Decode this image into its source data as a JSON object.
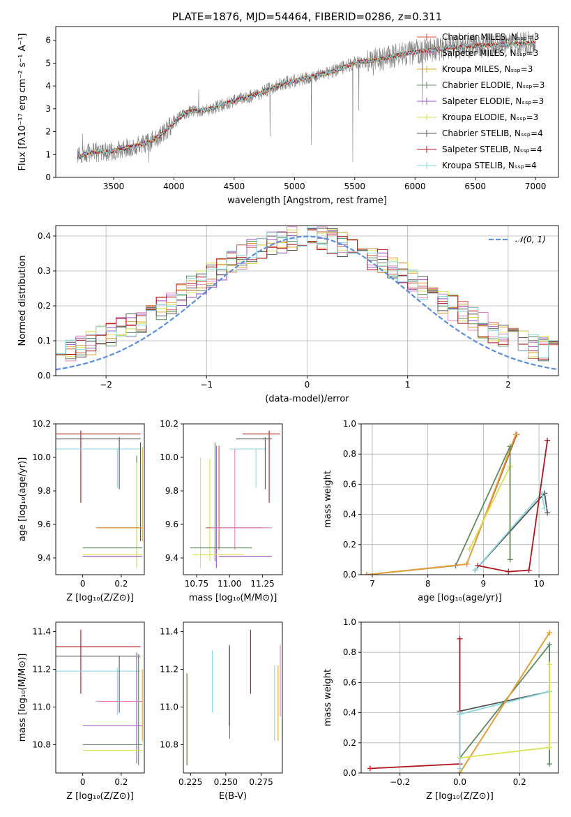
{
  "palette": {
    "chabrier_miles": "#d0553b",
    "salpeter_miles": "#e383c0",
    "kroupa_miles": "#e3a335",
    "chabrier_elodie": "#5f8a5f",
    "salpeter_elodie": "#9b4fc4",
    "kroupa_elodie": "#d8e24f",
    "chabrier_stelib": "#555555",
    "salpeter_stelib": "#b0161c",
    "kroupa_stelib": "#89d8e0",
    "normal": "#5b8fdd",
    "data": "#808080"
  },
  "chart_data": [
    {
      "id": "spectrum",
      "type": "line",
      "title": "PLATE=1876, MJD=54464, FIBERID=0286, z=0.311",
      "xlabel": "wavelength [Angstrom, rest frame]",
      "ylabel": "Flux [fλ10⁻¹⁷ erg cm⁻² s⁻¹ A⁻¹]",
      "xlim": [
        3020,
        7190
      ],
      "ylim": [
        0,
        6.6
      ],
      "xticks": [
        3500,
        4000,
        4500,
        5000,
        5500,
        6000,
        6500,
        7000
      ],
      "yticks": [
        0,
        1,
        2,
        3,
        4,
        5,
        6
      ],
      "grid": false,
      "legend_position": "top-right",
      "x_range": [
        3200,
        7000
      ],
      "continuum": {
        "x": [
          3200,
          3300,
          3500,
          3700,
          3800,
          3900,
          4000,
          4100,
          4300,
          4500,
          4700,
          4900,
          5100,
          5300,
          5500,
          5700,
          5900,
          6100,
          6300,
          6500,
          6700,
          6900,
          7000
        ],
        "y": [
          0.85,
          1.1,
          1.15,
          1.4,
          1.55,
          1.9,
          2.4,
          2.85,
          3.0,
          3.35,
          3.65,
          4.1,
          4.35,
          4.6,
          5.0,
          5.15,
          5.4,
          5.55,
          5.7,
          5.75,
          5.8,
          5.85,
          5.9
        ]
      },
      "legend": [
        "Chabrier MILES, Nₛₛₚ=3",
        "Salpeter MILES, Nₛₛₚ=3",
        "Kroupa MILES, Nₛₛₚ=3",
        "Chabrier ELODIE, Nₛₛₚ=3",
        "Salpeter ELODIE, Nₛₛₚ=3",
        "Kroupa ELODIE, Nₛₛₚ=3",
        "Chabrier STELIB, Nₛₛₚ=4",
        "Salpeter STELIB, Nₛₛₚ=4",
        "Kroupa STELIB, Nₛₛₚ=4"
      ]
    },
    {
      "id": "residuals",
      "type": "line",
      "xlabel": "(data-model)/error",
      "ylabel": "Normed distribution",
      "xlim": [
        -2.5,
        2.5
      ],
      "ylim": [
        0,
        0.43
      ],
      "xticks": [
        -2,
        -1,
        0,
        1,
        2
      ],
      "yticks": [
        0.0,
        0.1,
        0.2,
        0.3,
        0.4
      ],
      "grid": true,
      "legend_position": "top-right",
      "legend": [
        "𝒩(0, 1)"
      ],
      "bins": 50,
      "reference_curve": {
        "type": "normal",
        "mean": 0,
        "sigma": 1
      }
    },
    {
      "id": "age_vs_Z",
      "type": "scatter",
      "xlabel": "Z [log₁₀(Z/Z⊙)]",
      "ylabel": "age  [log₁₀(age/yr)]",
      "xlim": [
        -0.14,
        0.32
      ],
      "ylim": [
        9.3,
        10.2
      ],
      "xticks": [
        0.0,
        0.2
      ],
      "yticks": [
        9.4,
        9.6,
        9.8,
        10.0,
        10.2
      ],
      "grid": false,
      "segments": [
        {
          "c": "salpeter_stelib",
          "x": [
            -0.14,
            0.3
          ],
          "y": [
            10.14,
            10.14
          ]
        },
        {
          "c": "salpeter_stelib",
          "x": [
            -0.01,
            -0.01
          ],
          "y": [
            9.73,
            10.16
          ]
        },
        {
          "c": "chabrier_stelib",
          "x": [
            -0.14,
            0.3
          ],
          "y": [
            10.11,
            10.11
          ]
        },
        {
          "c": "kroupa_stelib",
          "x": [
            -0.14,
            0.3
          ],
          "y": [
            10.05,
            10.05
          ]
        },
        {
          "c": "chabrier_stelib",
          "x": [
            0.19,
            0.19
          ],
          "y": [
            9.81,
            10.12
          ]
        },
        {
          "c": "kroupa_stelib",
          "x": [
            0.18,
            0.18
          ],
          "y": [
            9.82,
            10.05
          ]
        },
        {
          "c": "chabrier_elodie",
          "x": [
            0.28,
            0.28
          ],
          "y": [
            9.34,
            10.01
          ]
        },
        {
          "c": "kroupa_elodie",
          "x": [
            0.28,
            0.28
          ],
          "y": [
            9.34,
            9.97
          ]
        },
        {
          "c": "chabrier_stelib",
          "x": [
            0.3,
            0.3
          ],
          "y": [
            9.5,
            10.09
          ]
        },
        {
          "c": "kroupa_miles",
          "x": [
            0.31,
            0.31
          ],
          "y": [
            9.5,
            10.06
          ]
        },
        {
          "c": "chabrier_miles",
          "x": [
            0.07,
            0.31
          ],
          "y": [
            9.58,
            9.58
          ]
        },
        {
          "c": "kroupa_miles",
          "x": [
            0.07,
            0.31
          ],
          "y": [
            9.58,
            9.58
          ]
        },
        {
          "c": "chabrier_elodie",
          "x": [
            0.0,
            0.31
          ],
          "y": [
            9.46,
            9.46
          ]
        },
        {
          "c": "kroupa_elodie",
          "x": [
            0.0,
            0.31
          ],
          "y": [
            9.42,
            9.42
          ]
        },
        {
          "c": "salpeter_elodie",
          "x": [
            0.0,
            0.31
          ],
          "y": [
            9.41,
            9.41
          ]
        }
      ]
    },
    {
      "id": "age_vs_mass",
      "type": "scatter",
      "xlabel": "mass [log₁₀(M/M⊙)]",
      "ylabel": "",
      "xlim": [
        10.65,
        11.4
      ],
      "ylim": [
        9.3,
        10.2
      ],
      "xticks": [
        10.75,
        11.0,
        11.25
      ],
      "tick_labels": [
        "10.75",
        "11.00",
        "11.25"
      ],
      "yticks": [
        9.4,
        9.6,
        9.8,
        10.0,
        10.2
      ],
      "grid": false,
      "segments": [
        {
          "c": "salpeter_stelib",
          "x": [
            11.1,
            11.38
          ],
          "y": [
            10.14,
            10.14
          ]
        },
        {
          "c": "chabrier_stelib",
          "x": [
            11.05,
            11.32
          ],
          "y": [
            10.11,
            10.11
          ]
        },
        {
          "c": "kroupa_stelib",
          "x": [
            11.0,
            11.28
          ],
          "y": [
            10.05,
            10.05
          ]
        },
        {
          "c": "salpeter_stelib",
          "x": [
            11.3,
            11.3
          ],
          "y": [
            9.73,
            10.16
          ]
        },
        {
          "c": "chabrier_stelib",
          "x": [
            11.27,
            11.27
          ],
          "y": [
            9.81,
            10.12
          ]
        },
        {
          "c": "kroupa_stelib",
          "x": [
            11.2,
            11.2
          ],
          "y": [
            9.82,
            10.05
          ]
        },
        {
          "c": "salpeter_miles",
          "x": [
            11.04,
            11.04
          ],
          "y": [
            9.45,
            10.05
          ]
        },
        {
          "c": "chabrier_miles",
          "x": [
            10.92,
            10.92
          ],
          "y": [
            9.45,
            10.07
          ]
        },
        {
          "c": "chabrier_elodie",
          "x": [
            10.89,
            10.89
          ],
          "y": [
            9.38,
            10.09
          ]
        },
        {
          "c": "salpeter_elodie",
          "x": [
            10.9,
            10.9
          ],
          "y": [
            9.34,
            10.07
          ]
        },
        {
          "c": "kroupa_elodie",
          "x": [
            10.78,
            10.78
          ],
          "y": [
            9.34,
            10.0
          ]
        },
        {
          "c": "kroupa_elodie",
          "x": [
            10.85,
            10.85
          ],
          "y": [
            9.38,
            9.99
          ]
        },
        {
          "c": "chabrier_miles",
          "x": [
            10.82,
            11.25
          ],
          "y": [
            9.58,
            9.58
          ]
        },
        {
          "c": "salpeter_miles",
          "x": [
            10.85,
            11.32
          ],
          "y": [
            9.58,
            9.58
          ]
        },
        {
          "c": "chabrier_elodie",
          "x": [
            10.7,
            11.17
          ],
          "y": [
            9.46,
            9.46
          ]
        },
        {
          "c": "kroupa_elodie",
          "x": [
            10.72,
            11.11
          ],
          "y": [
            9.42,
            9.42
          ]
        },
        {
          "c": "salpeter_elodie",
          "x": [
            10.92,
            11.32
          ],
          "y": [
            9.41,
            9.41
          ]
        }
      ]
    },
    {
      "id": "weight_vs_age",
      "type": "line",
      "xlabel": "age  [log₁₀(age/yr)]",
      "ylabel": "mass weight",
      "xlim": [
        6.8,
        10.35
      ],
      "ylim": [
        0,
        1.0
      ],
      "xticks": [
        7,
        8,
        9,
        10
      ],
      "yticks": [
        0.0,
        0.2,
        0.4,
        0.6,
        0.8,
        1.0
      ],
      "grid": true,
      "series": [
        {
          "c": "chabrier_elodie",
          "x": [
            6.9,
            8.5,
            9.48
          ],
          "y": [
            0.0,
            0.06,
            0.85
          ]
        },
        {
          "c": "chabrier_miles",
          "x": [
            6.9,
            8.7,
            9.6
          ],
          "y": [
            0.0,
            0.07,
            0.93
          ]
        },
        {
          "c": "kroupa_miles",
          "x": [
            6.9,
            8.7,
            9.58
          ],
          "y": [
            0.0,
            0.07,
            0.93
          ]
        },
        {
          "c": "kroupa_elodie",
          "x": [
            8.75,
            9.48,
            9.48
          ],
          "y": [
            0.17,
            0.72,
            0.1
          ]
        },
        {
          "c": "chabrier_stelib",
          "x": [
            8.85,
            10.1,
            10.15
          ],
          "y": [
            0.03,
            0.54,
            0.41
          ]
        },
        {
          "c": "kroupa_stelib",
          "x": [
            8.85,
            10.05,
            10.1
          ],
          "y": [
            0.03,
            0.54,
            0.44
          ]
        },
        {
          "c": "salpeter_stelib",
          "x": [
            8.9,
            9.45,
            9.82,
            10.15
          ],
          "y": [
            0.06,
            0.02,
            0.03,
            0.89
          ]
        },
        {
          "c": "chabrier_elodie",
          "x": [
            9.48,
            9.48
          ],
          "y": [
            0.1,
            0.85
          ]
        }
      ]
    },
    {
      "id": "mass_vs_Z",
      "type": "scatter",
      "xlabel": "Z [log₁₀(Z/Z⊙)]",
      "ylabel": "mass [log₁₀(M/M⊙)]",
      "xlim": [
        -0.14,
        0.32
      ],
      "ylim": [
        10.65,
        11.45
      ],
      "xticks": [
        0.0,
        0.2
      ],
      "yticks": [
        10.8,
        11.0,
        11.2,
        11.4
      ],
      "grid": false,
      "segments": [
        {
          "c": "salpeter_stelib",
          "x": [
            -0.14,
            0.3
          ],
          "y": [
            11.32,
            11.32
          ]
        },
        {
          "c": "salpeter_stelib",
          "x": [
            -0.01,
            -0.01
          ],
          "y": [
            11.07,
            11.41
          ]
        },
        {
          "c": "chabrier_stelib",
          "x": [
            -0.14,
            0.3
          ],
          "y": [
            11.27,
            11.27
          ]
        },
        {
          "c": "kroupa_stelib",
          "x": [
            -0.14,
            0.3
          ],
          "y": [
            11.19,
            11.19
          ]
        },
        {
          "c": "chabrier_stelib",
          "x": [
            0.19,
            0.19
          ],
          "y": [
            10.97,
            11.27
          ]
        },
        {
          "c": "kroupa_stelib",
          "x": [
            0.18,
            0.18
          ],
          "y": [
            10.96,
            11.21
          ]
        },
        {
          "c": "salpeter_elodie",
          "x": [
            0.28,
            0.28
          ],
          "y": [
            10.7,
            11.29
          ]
        },
        {
          "c": "chabrier_elodie",
          "x": [
            0.29,
            0.29
          ],
          "y": [
            10.69,
            11.28
          ]
        },
        {
          "c": "kroupa_miles",
          "x": [
            0.31,
            0.31
          ],
          "y": [
            10.82,
            11.2
          ]
        },
        {
          "c": "salpeter_miles",
          "x": [
            0.07,
            0.31
          ],
          "y": [
            11.03,
            11.03
          ]
        },
        {
          "c": "salpeter_elodie",
          "x": [
            0.0,
            0.31
          ],
          "y": [
            10.9,
            10.9
          ]
        },
        {
          "c": "chabrier_elodie",
          "x": [
            0.0,
            0.31
          ],
          "y": [
            10.8,
            10.8
          ]
        },
        {
          "c": "kroupa_elodie",
          "x": [
            0.0,
            0.31
          ],
          "y": [
            10.77,
            10.77
          ]
        }
      ]
    },
    {
      "id": "mass_vs_ebv",
      "type": "scatter",
      "xlabel": "E(B-V)",
      "ylabel": "",
      "xlim": [
        0.22,
        0.29
      ],
      "ylim": [
        10.65,
        11.45
      ],
      "xticks": [
        0.225,
        0.25,
        0.275
      ],
      "tick_labels": [
        "0.225",
        "0.250",
        "0.275"
      ],
      "yticks": [
        10.8,
        11.0,
        11.2,
        11.4
      ],
      "grid": false,
      "segments": [
        {
          "c": "chabrier_elodie",
          "x": [
            0.2225,
            0.2225
          ],
          "y": [
            10.69,
            11.18
          ]
        },
        {
          "c": "kroupa_elodie",
          "x": [
            0.223,
            0.223
          ],
          "y": [
            10.69,
            11.17
          ]
        },
        {
          "c": "kroupa_stelib",
          "x": [
            0.2405,
            0.2405
          ],
          "y": [
            10.97,
            11.3
          ]
        },
        {
          "c": "chabrier_stelib",
          "x": [
            0.2525,
            0.2525
          ],
          "y": [
            10.9,
            11.33
          ]
        },
        {
          "c": "salpeter_elodie",
          "x": [
            0.2528,
            0.2528
          ],
          "y": [
            10.83,
            11.32
          ]
        },
        {
          "c": "salpeter_stelib",
          "x": [
            0.2675,
            0.2675
          ],
          "y": [
            11.07,
            11.41
          ]
        },
        {
          "c": "kroupa_stelib",
          "x": [
            0.2845,
            0.2845
          ],
          "y": [
            10.82,
            11.22
          ]
        },
        {
          "c": "kroupa_miles",
          "x": [
            0.287,
            0.287
          ],
          "y": [
            10.82,
            11.22
          ]
        },
        {
          "c": "salpeter_miles",
          "x": [
            0.2885,
            0.2885
          ],
          "y": [
            10.95,
            11.33
          ]
        }
      ]
    },
    {
      "id": "weight_vs_Z",
      "type": "line",
      "xlabel": "Z [log₁₀(Z/Z⊙)]",
      "ylabel": "mass weight",
      "xlim": [
        -0.33,
        0.33
      ],
      "ylim": [
        0,
        1.0
      ],
      "xticks": [
        -0.2,
        0.0,
        0.2
      ],
      "tick_labels": [
        "−0.2",
        "0.0",
        "0.2"
      ],
      "yticks": [
        0.0,
        0.2,
        0.4,
        0.6,
        0.8,
        1.0
      ],
      "grid": true,
      "series": [
        {
          "c": "salpeter_stelib",
          "x": [
            -0.3,
            0.0,
            0.0
          ],
          "y": [
            0.03,
            0.06,
            0.89
          ]
        },
        {
          "c": "chabrier_stelib",
          "x": [
            0.0,
            0.3
          ],
          "y": [
            0.41,
            0.54
          ]
        },
        {
          "c": "kroupa_stelib",
          "x": [
            0.0,
            0.3
          ],
          "y": [
            0.39,
            0.54
          ]
        },
        {
          "c": "chabrier_elodie",
          "x": [
            0.0,
            0.3,
            0.3
          ],
          "y": [
            0.1,
            0.85,
            0.06
          ]
        },
        {
          "c": "chabrier_miles",
          "x": [
            0.0,
            0.3
          ],
          "y": [
            0.0,
            0.93
          ]
        },
        {
          "c": "kroupa_miles",
          "x": [
            0.0,
            0.3
          ],
          "y": [
            0.0,
            0.93
          ]
        },
        {
          "c": "kroupa_elodie",
          "x": [
            0.0,
            0.3,
            0.3
          ],
          "y": [
            0.1,
            0.17,
            0.72
          ]
        },
        {
          "c": "kroupa_stelib",
          "x": [
            0.0,
            0.0
          ],
          "y": [
            0.03,
            0.39
          ]
        }
      ]
    }
  ]
}
